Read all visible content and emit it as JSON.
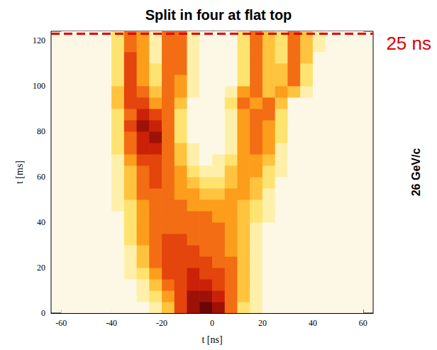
{
  "chart_data": {
    "type": "heatmap",
    "title": "Split in four at flat top",
    "x_label": "t [ns]",
    "y_label": "t [ms]",
    "xlim": [
      -64,
      64
    ],
    "ylim": [
      0,
      124
    ],
    "xticks": [
      -60,
      -40,
      -20,
      0,
      20,
      40,
      60
    ],
    "yticks": [
      0,
      20,
      40,
      60,
      80,
      100,
      120
    ],
    "color_range": [
      0,
      9
    ],
    "annotations": [
      {
        "text": "25 ns",
        "y": 123
      },
      {
        "text": "26 GeV/c"
      }
    ],
    "x": [
      -57.5,
      -52.5,
      -47.5,
      -42.5,
      -37.5,
      -32.5,
      -27.5,
      -22.5,
      -17.5,
      -12.5,
      -7.5,
      -2.5,
      2.5,
      7.5,
      12.5,
      17.5,
      22.5,
      27.5,
      32.5,
      37.5,
      42.5,
      47.5,
      52.5,
      57.5
    ],
    "y": [
      2.5,
      7.5,
      12.5,
      17.5,
      22.5,
      27.5,
      32.5,
      37.5,
      42.5,
      47.5,
      52.5,
      57.5,
      62.5,
      67.5,
      72.5,
      77.5,
      82.5,
      87.5,
      92.5,
      97.5,
      102.5,
      107.5,
      112.5,
      117.5,
      122.5
    ],
    "values": [
      [
        0,
        0,
        0,
        0,
        0,
        0,
        0,
        1,
        3,
        6,
        8,
        9,
        8,
        5,
        2,
        1,
        0,
        0,
        0,
        0,
        0,
        0,
        0,
        0
      ],
      [
        0,
        0,
        0,
        0,
        0,
        0,
        1,
        2,
        4,
        6,
        8,
        8,
        7,
        5,
        3,
        1,
        0,
        0,
        0,
        0,
        0,
        0,
        0,
        0
      ],
      [
        0,
        0,
        0,
        0,
        0,
        0,
        1,
        3,
        5,
        6,
        7,
        7,
        6,
        5,
        3,
        1,
        0,
        0,
        0,
        0,
        0,
        0,
        0,
        0
      ],
      [
        0,
        0,
        0,
        0,
        0,
        1,
        2,
        4,
        6,
        6,
        7,
        6,
        6,
        5,
        3,
        1,
        0,
        0,
        0,
        0,
        0,
        0,
        0,
        0
      ],
      [
        0,
        0,
        0,
        0,
        0,
        1,
        3,
        5,
        6,
        6,
        6,
        6,
        5,
        5,
        3,
        1,
        0,
        0,
        0,
        0,
        0,
        0,
        0,
        0
      ],
      [
        0,
        0,
        0,
        0,
        0,
        1,
        3,
        5,
        6,
        6,
        6,
        5,
        5,
        4,
        3,
        1,
        0,
        0,
        0,
        0,
        0,
        0,
        0,
        0
      ],
      [
        0,
        0,
        0,
        0,
        0,
        2,
        4,
        5,
        6,
        6,
        5,
        5,
        5,
        4,
        3,
        1,
        0,
        0,
        0,
        0,
        0,
        0,
        0,
        0
      ],
      [
        0,
        0,
        0,
        0,
        0,
        2,
        4,
        5,
        5,
        5,
        5,
        5,
        5,
        4,
        3,
        1,
        0,
        0,
        0,
        0,
        0,
        0,
        0,
        0
      ],
      [
        0,
        0,
        0,
        0,
        0,
        2,
        4,
        5,
        5,
        5,
        5,
        5,
        4,
        4,
        3,
        2,
        1,
        0,
        0,
        0,
        0,
        0,
        0,
        0
      ],
      [
        0,
        0,
        0,
        0,
        1,
        2,
        4,
        5,
        5,
        5,
        4,
        4,
        4,
        4,
        3,
        2,
        1,
        0,
        0,
        0,
        0,
        0,
        0,
        0
      ],
      [
        0,
        0,
        0,
        0,
        1,
        3,
        5,
        5,
        5,
        4,
        4,
        3,
        3,
        4,
        4,
        3,
        1,
        0,
        0,
        0,
        0,
        0,
        0,
        0
      ],
      [
        0,
        0,
        0,
        0,
        1,
        3,
        5,
        6,
        5,
        4,
        3,
        2,
        2,
        3,
        4,
        3,
        2,
        0,
        0,
        0,
        0,
        0,
        0,
        0
      ],
      [
        0,
        0,
        0,
        0,
        1,
        3,
        5,
        6,
        5,
        4,
        2,
        1,
        1,
        3,
        4,
        4,
        2,
        1,
        0,
        0,
        0,
        0,
        0,
        0
      ],
      [
        0,
        0,
        0,
        0,
        1,
        4,
        6,
        6,
        5,
        3,
        1,
        0,
        1,
        2,
        4,
        4,
        3,
        1,
        0,
        0,
        0,
        0,
        0,
        0
      ],
      [
        0,
        0,
        0,
        0,
        2,
        5,
        7,
        7,
        5,
        3,
        1,
        0,
        0,
        1,
        4,
        5,
        4,
        1,
        0,
        0,
        0,
        0,
        0,
        0
      ],
      [
        0,
        0,
        0,
        0,
        2,
        5,
        7,
        8,
        5,
        2,
        0,
        0,
        0,
        1,
        4,
        5,
        4,
        2,
        0,
        0,
        0,
        0,
        0,
        0
      ],
      [
        0,
        0,
        0,
        0,
        2,
        6,
        8,
        7,
        5,
        2,
        0,
        0,
        0,
        1,
        4,
        5,
        4,
        2,
        0,
        0,
        0,
        0,
        0,
        0
      ],
      [
        0,
        0,
        0,
        0,
        2,
        5,
        7,
        6,
        5,
        2,
        0,
        0,
        0,
        1,
        4,
        5,
        5,
        2,
        0,
        0,
        0,
        0,
        0,
        0
      ],
      [
        0,
        0,
        0,
        0,
        3,
        6,
        6,
        4,
        5,
        3,
        0,
        0,
        0,
        2,
        5,
        4,
        5,
        3,
        0,
        0,
        0,
        0,
        0,
        0
      ],
      [
        0,
        0,
        0,
        0,
        3,
        6,
        5,
        3,
        5,
        4,
        1,
        0,
        0,
        1,
        4,
        5,
        3,
        4,
        3,
        1,
        0,
        0,
        0,
        0
      ],
      [
        0,
        0,
        0,
        0,
        2,
        6,
        4,
        2,
        5,
        4,
        1,
        0,
        0,
        0,
        2,
        5,
        3,
        3,
        5,
        2,
        0,
        0,
        0,
        0
      ],
      [
        0,
        0,
        0,
        0,
        2,
        6,
        4,
        2,
        5,
        5,
        1,
        0,
        0,
        0,
        2,
        5,
        3,
        3,
        5,
        2,
        0,
        0,
        0,
        0
      ],
      [
        0,
        0,
        0,
        0,
        2,
        6,
        4,
        1,
        5,
        5,
        1,
        0,
        0,
        0,
        2,
        5,
        3,
        2,
        5,
        3,
        0,
        0,
        0,
        0
      ],
      [
        0,
        0,
        0,
        0,
        2,
        5,
        4,
        1,
        5,
        5,
        1,
        0,
        0,
        0,
        2,
        5,
        3,
        2,
        5,
        3,
        1,
        0,
        0,
        0
      ],
      [
        0,
        0,
        0,
        0,
        2,
        5,
        4,
        1,
        5,
        5,
        1,
        0,
        0,
        0,
        2,
        5,
        3,
        2,
        5,
        3,
        1,
        0,
        0,
        0
      ]
    ]
  }
}
